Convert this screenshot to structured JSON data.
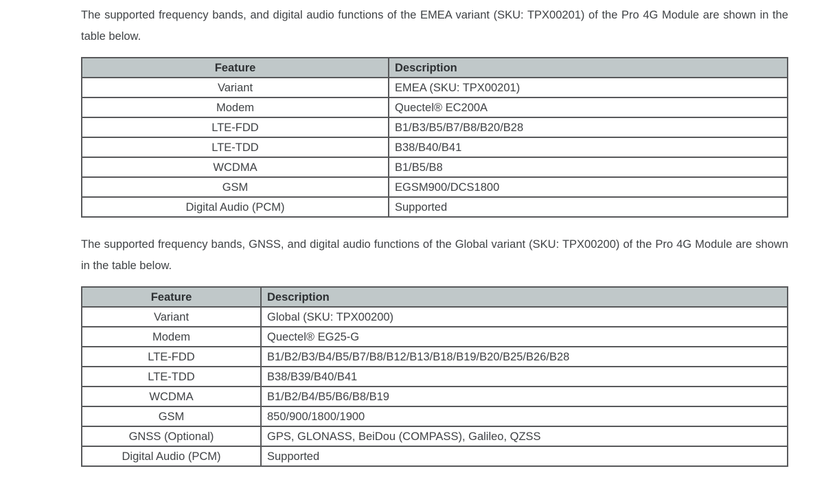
{
  "colors": {
    "table_header_bg": "#c0c8c9",
    "table_border": "#58595b",
    "body_text": "#3f4245"
  },
  "paragraphs": [
    "The supported frequency bands, and digital audio functions of the EMEA variant (SKU: TPX00201) of the Pro 4G Module are shown in the table below.",
    "The supported frequency bands, GNSS, and digital audio functions of the Global variant (SKU: TPX00200) of the Pro 4G Module are shown in the table below."
  ],
  "tables": [
    {
      "name": "EMEA variant",
      "headers": [
        "Feature",
        "Description"
      ],
      "rows": [
        [
          "Variant",
          "EMEA (SKU: TPX00201)"
        ],
        [
          "Modem",
          "Quectel® EC200A"
        ],
        [
          "LTE-FDD",
          "B1/B3/B5/B7/B8/B20/B28"
        ],
        [
          "LTE-TDD",
          "B38/B40/B41"
        ],
        [
          "WCDMA",
          "B1/B5/B8"
        ],
        [
          "GSM",
          "EGSM900/DCS1800"
        ],
        [
          "Digital Audio (PCM)",
          "Supported"
        ]
      ]
    },
    {
      "name": "Global variant",
      "headers": [
        "Feature",
        "Description"
      ],
      "rows": [
        [
          "Variant",
          "Global (SKU: TPX00200)"
        ],
        [
          "Modem",
          "Quectel® EG25-G"
        ],
        [
          "LTE-FDD",
          "B1/B2/B3/B4/B5/B7/B8/B12/B13/B18/B19/B20/B25/B26/B28"
        ],
        [
          "LTE-TDD",
          "B38/B39/B40/B41"
        ],
        [
          "WCDMA",
          "B1/B2/B4/B5/B6/B8/B19"
        ],
        [
          "GSM",
          "850/900/1800/1900"
        ],
        [
          "GNSS (Optional)",
          "GPS, GLONASS, BeiDou (COMPASS), Galileo, QZSS"
        ],
        [
          "Digital Audio (PCM)",
          "Supported"
        ]
      ]
    }
  ]
}
